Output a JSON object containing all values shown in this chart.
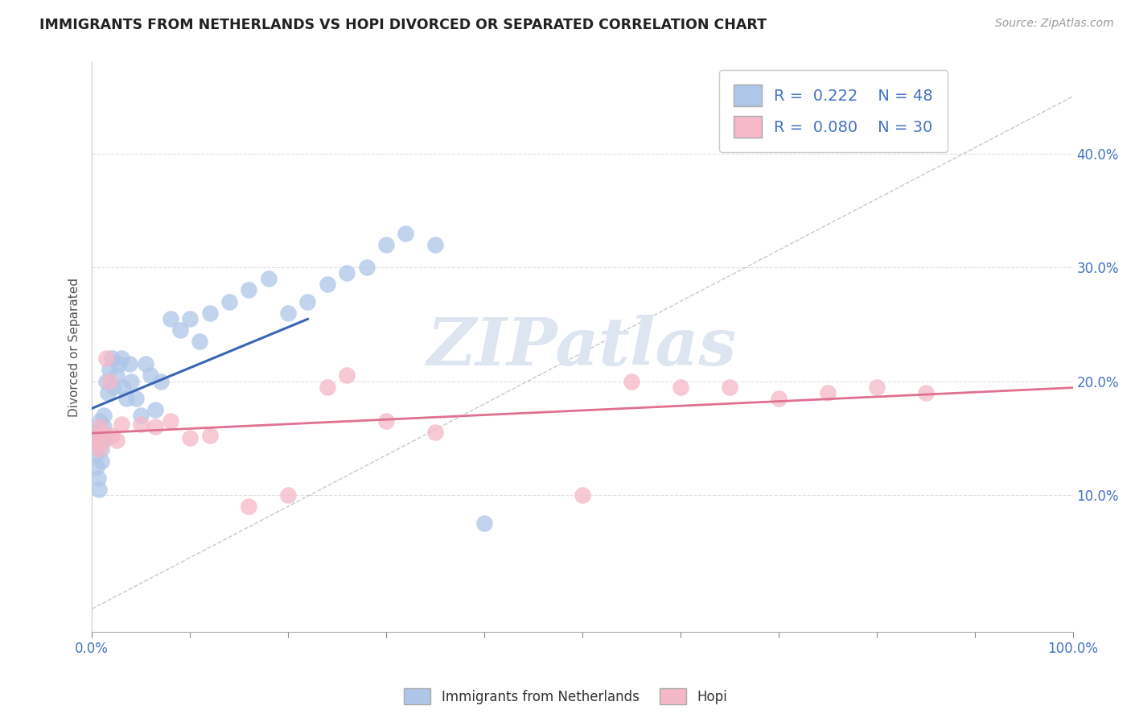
{
  "title": "IMMIGRANTS FROM NETHERLANDS VS HOPI DIVORCED OR SEPARATED CORRELATION CHART",
  "source_text": "Source: ZipAtlas.com",
  "ylabel": "Divorced or Separated",
  "legend_label1": "Immigrants from Netherlands",
  "legend_label2": "Hopi",
  "r1": 0.222,
  "n1": 48,
  "r2": 0.08,
  "n2": 30,
  "xlim": [
    0.0,
    1.0
  ],
  "ylim": [
    -0.02,
    0.48
  ],
  "blue_scatter_x": [
    0.002,
    0.003,
    0.004,
    0.005,
    0.006,
    0.007,
    0.008,
    0.009,
    0.01,
    0.01,
    0.012,
    0.012,
    0.014,
    0.015,
    0.016,
    0.018,
    0.02,
    0.022,
    0.025,
    0.028,
    0.03,
    0.032,
    0.035,
    0.038,
    0.04,
    0.045,
    0.05,
    0.055,
    0.06,
    0.065,
    0.07,
    0.08,
    0.09,
    0.1,
    0.11,
    0.12,
    0.14,
    0.16,
    0.18,
    0.2,
    0.22,
    0.24,
    0.26,
    0.28,
    0.3,
    0.32,
    0.35,
    0.4
  ],
  "blue_scatter_y": [
    0.155,
    0.145,
    0.135,
    0.125,
    0.115,
    0.105,
    0.165,
    0.15,
    0.14,
    0.13,
    0.17,
    0.16,
    0.15,
    0.2,
    0.19,
    0.21,
    0.22,
    0.195,
    0.205,
    0.215,
    0.22,
    0.195,
    0.185,
    0.215,
    0.2,
    0.185,
    0.17,
    0.215,
    0.205,
    0.175,
    0.2,
    0.255,
    0.245,
    0.255,
    0.235,
    0.26,
    0.27,
    0.28,
    0.29,
    0.26,
    0.27,
    0.285,
    0.295,
    0.3,
    0.32,
    0.33,
    0.32,
    0.075
  ],
  "pink_scatter_x": [
    0.003,
    0.005,
    0.007,
    0.008,
    0.01,
    0.012,
    0.015,
    0.018,
    0.02,
    0.025,
    0.03,
    0.05,
    0.065,
    0.08,
    0.1,
    0.12,
    0.16,
    0.2,
    0.24,
    0.26,
    0.3,
    0.35,
    0.5,
    0.55,
    0.6,
    0.65,
    0.7,
    0.75,
    0.8,
    0.85
  ],
  "pink_scatter_y": [
    0.15,
    0.145,
    0.14,
    0.16,
    0.155,
    0.148,
    0.22,
    0.2,
    0.152,
    0.148,
    0.162,
    0.162,
    0.16,
    0.165,
    0.15,
    0.152,
    0.09,
    0.1,
    0.195,
    0.205,
    0.165,
    0.155,
    0.1,
    0.2,
    0.195,
    0.195,
    0.185,
    0.19,
    0.195,
    0.19
  ],
  "blue_color": "#aec6e8",
  "pink_color": "#f4b8c8",
  "blue_line_color": "#3a65b5",
  "pink_line_color": "#e07090",
  "diag_line_color": "#bbbbbb",
  "watermark_text": "ZIPatlas",
  "watermark_color": "#dde5f0",
  "title_color": "#222222",
  "source_color": "#999999",
  "legend_text_color": "#4472c4",
  "tick_label_color": "#4472c4",
  "axis_label_color": "#555555",
  "background_color": "#ffffff",
  "grid_color": "#e0e0e0",
  "blue_trend_x": [
    0.0,
    0.22
  ],
  "pink_trend_x": [
    0.0,
    1.0
  ]
}
